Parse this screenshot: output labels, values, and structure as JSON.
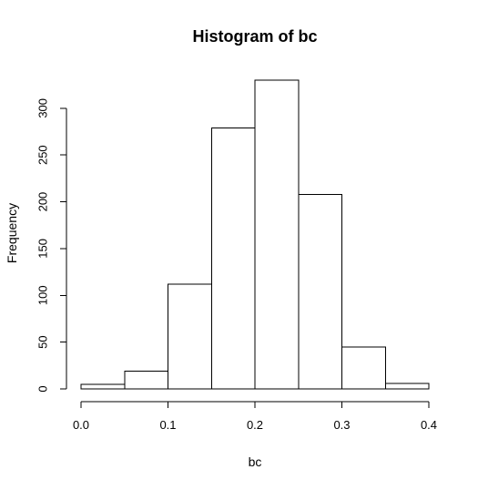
{
  "chart_data": {
    "type": "bar",
    "title": "Histogram of bc",
    "xlabel": "bc",
    "ylabel": "Frequency",
    "bins": [
      {
        "x0": 0.0,
        "x1": 0.05,
        "count": 5
      },
      {
        "x0": 0.05,
        "x1": 0.1,
        "count": 19
      },
      {
        "x0": 0.1,
        "x1": 0.15,
        "count": 112
      },
      {
        "x0": 0.15,
        "x1": 0.2,
        "count": 279
      },
      {
        "x0": 0.2,
        "x1": 0.25,
        "count": 330
      },
      {
        "x0": 0.25,
        "x1": 0.3,
        "count": 208
      },
      {
        "x0": 0.3,
        "x1": 0.35,
        "count": 45
      },
      {
        "x0": 0.35,
        "x1": 0.4,
        "count": 6
      }
    ],
    "xlim": [
      0.0,
      0.4
    ],
    "ylim": [
      0,
      330
    ],
    "x_ticks": [
      0.0,
      0.1,
      0.2,
      0.3,
      0.4
    ],
    "x_tick_labels": [
      "0.0",
      "0.1",
      "0.2",
      "0.3",
      "0.4"
    ],
    "y_ticks": [
      0,
      50,
      100,
      150,
      200,
      250,
      300
    ],
    "y_tick_labels": [
      "0",
      "50",
      "100",
      "150",
      "200",
      "250",
      "300"
    ],
    "grid": false,
    "colors": {
      "bar_fill": "#ffffff",
      "bar_stroke": "#000000",
      "axis": "#000000",
      "background": "#ffffff"
    }
  }
}
